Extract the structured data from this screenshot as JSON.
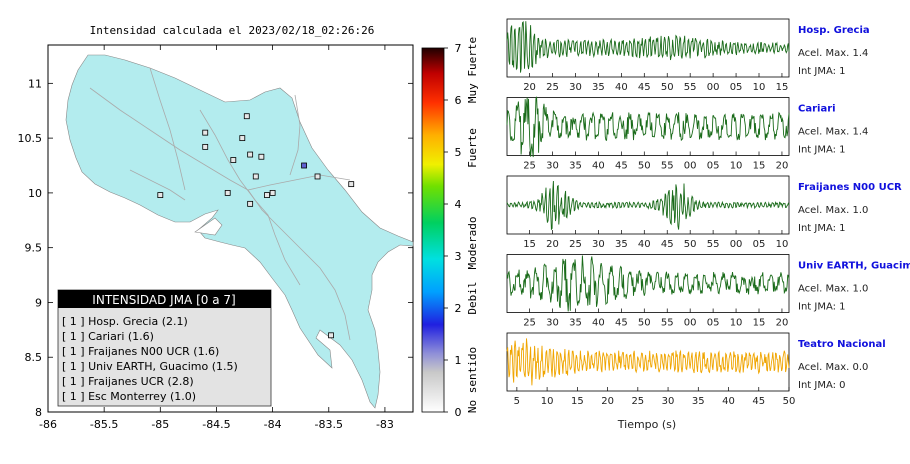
{
  "map": {
    "title": "Intensidad calculada el 2023/02/18_02:26:26",
    "x_ticks": [
      "-86",
      "-85.5",
      "-85",
      "-84.5",
      "-84",
      "-83.5",
      "-83"
    ],
    "y_ticks": [
      "11",
      "10.5",
      "10",
      "9.5",
      "9",
      "8.5",
      "8"
    ],
    "xlim": [
      -86,
      -82.75
    ],
    "ylim": [
      8,
      11.35
    ],
    "legend_title": "INTENSIDAD JMA [0 a 7]",
    "legend_items": [
      "[ 1 ]  Hosp. Grecia (2.1)",
      "[ 1 ]  Cariari (1.6)",
      "[ 1 ]  Fraijanes N00 UCR (1.6)",
      "[ 1 ]  Univ EARTH, Guacimo (1.5)",
      "[ 1 ]  Fraijanes UCR (2.8)",
      "[ 1 ]  Esc Monterrey (1.0)"
    ]
  },
  "colorbar": {
    "ticks": [
      "0",
      "1",
      "2",
      "3",
      "4",
      "5",
      "6",
      "7"
    ],
    "labels": [
      "No sentido",
      "Debil",
      "Moderado",
      "Fuerte",
      "Muy Fuerte"
    ]
  },
  "colors": {
    "land": "#b3ecee",
    "green_trace": "#1a6b1a",
    "orange_trace": "#f0a500",
    "station_name": "#1010dd"
  },
  "waveforms": {
    "xlabel": "Tiempo (s)",
    "panels": [
      {
        "name": "Hosp. Grecia",
        "accel": "Acel. Max. 1.4",
        "int": "Int JMA: 1",
        "ticks": [
          "20",
          "25",
          "30",
          "35",
          "40",
          "45",
          "50",
          "55",
          "00",
          "05",
          "10",
          "15"
        ],
        "color": "green"
      },
      {
        "name": "Cariari",
        "accel": "Acel. Max. 1.4",
        "int": "Int JMA: 1",
        "ticks": [
          "25",
          "30",
          "35",
          "40",
          "45",
          "50",
          "55",
          "00",
          "05",
          "10",
          "15",
          "20"
        ],
        "color": "green"
      },
      {
        "name": "Fraijanes N00 UCR",
        "accel": "Acel. Max. 1.0",
        "int": "Int JMA: 1",
        "ticks": [
          "15",
          "20",
          "25",
          "30",
          "35",
          "40",
          "45",
          "50",
          "55",
          "00",
          "05",
          "10"
        ],
        "color": "green"
      },
      {
        "name": "Univ EARTH, Guacimo",
        "accel": "Acel. Max. 1.0",
        "int": "Int JMA: 1",
        "ticks": [
          "25",
          "30",
          "35",
          "40",
          "45",
          "50",
          "55",
          "00",
          "05",
          "10",
          "15",
          "20"
        ],
        "color": "green"
      },
      {
        "name": "Teatro Nacional",
        "accel": "Acel. Max. 0.0",
        "int": "Int JMA: 0",
        "ticks": [
          "5",
          "10",
          "15",
          "20",
          "25",
          "30",
          "35",
          "40",
          "45",
          "50"
        ],
        "color": "orange"
      }
    ]
  },
  "chart_data": [
    {
      "type": "scatter",
      "title": "Intensidad calculada el 2023/02/18_02:26:26",
      "xlim": [
        -86,
        -82.75
      ],
      "ylim": [
        8,
        11.35
      ],
      "series": [
        {
          "name": "INTENSIDAD JMA [0 a 7]",
          "x": [
            -84.23,
            -84.27,
            -84.2,
            -84.35,
            -84.4,
            -84.15,
            -84.05,
            -84.0,
            -83.72,
            -83.6,
            -83.3,
            -84.6,
            -84.6,
            -85.0,
            -84.1,
            -84.2,
            -83.48
          ],
          "y": [
            10.7,
            10.5,
            10.35,
            10.3,
            10.0,
            10.15,
            9.98,
            10.0,
            10.25,
            10.15,
            10.08,
            10.55,
            10.42,
            9.98,
            10.33,
            9.9,
            8.7
          ]
        }
      ]
    },
    {
      "type": "line",
      "title": "Hosp. Grecia",
      "ylabel": "Acel. Max. 1.4"
    },
    {
      "type": "line",
      "title": "Cariari",
      "ylabel": "Acel. Max. 1.4"
    },
    {
      "type": "line",
      "title": "Fraijanes N00 UCR",
      "ylabel": "Acel. Max. 1.0"
    },
    {
      "type": "line",
      "title": "Univ EARTH, Guacimo",
      "ylabel": "Acel. Max. 1.0"
    },
    {
      "type": "line",
      "title": "Teatro Nacional",
      "ylabel": "Acel. Max. 0.0"
    }
  ]
}
